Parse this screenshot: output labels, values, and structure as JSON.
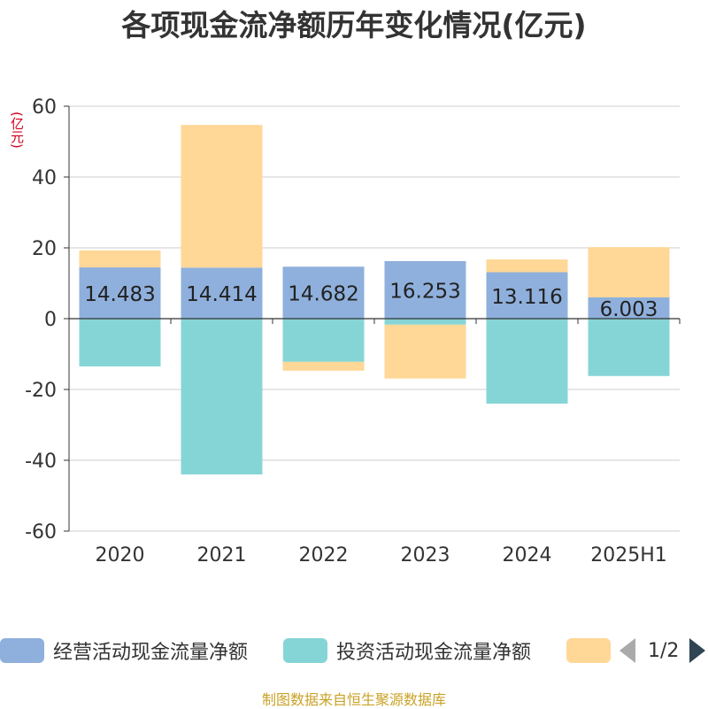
{
  "title": "各项现金流净额历年变化情况(亿元)",
  "unit_label": "(亿元)",
  "source": "制图数据来自恒生聚源数据库",
  "legend": {
    "page": "1/2"
  },
  "chart_data": {
    "type": "bar",
    "stacked": true,
    "categories": [
      "2020",
      "2021",
      "2022",
      "2023",
      "2024",
      "2025H1"
    ],
    "ylim": [
      -60,
      60
    ],
    "yticks": [
      60,
      40,
      20,
      0,
      -20,
      -40,
      -60
    ],
    "ytick_labels": [
      "60",
      "40",
      "20",
      "0",
      "-20",
      "-40",
      "-60"
    ],
    "grid": true,
    "legend_position": "bottom",
    "series": [
      {
        "name": "经营活动现金流量净额",
        "color": "#8fb0dc",
        "values": [
          14.483,
          14.414,
          14.682,
          16.253,
          13.116,
          6.003
        ],
        "labels": [
          "14.483",
          "14.414",
          "14.682",
          "16.253",
          "13.116",
          "6.003"
        ]
      },
      {
        "name": "投资活动现金流量净额",
        "color": "#86d5d6",
        "values": [
          -13.5,
          -44.0,
          -12.2,
          -1.7,
          -24.0,
          -16.2
        ]
      },
      {
        "name": "",
        "color": "#ffd796",
        "values": [
          4.8,
          40.3,
          -2.5,
          -15.2,
          3.6,
          14.2
        ]
      }
    ]
  }
}
